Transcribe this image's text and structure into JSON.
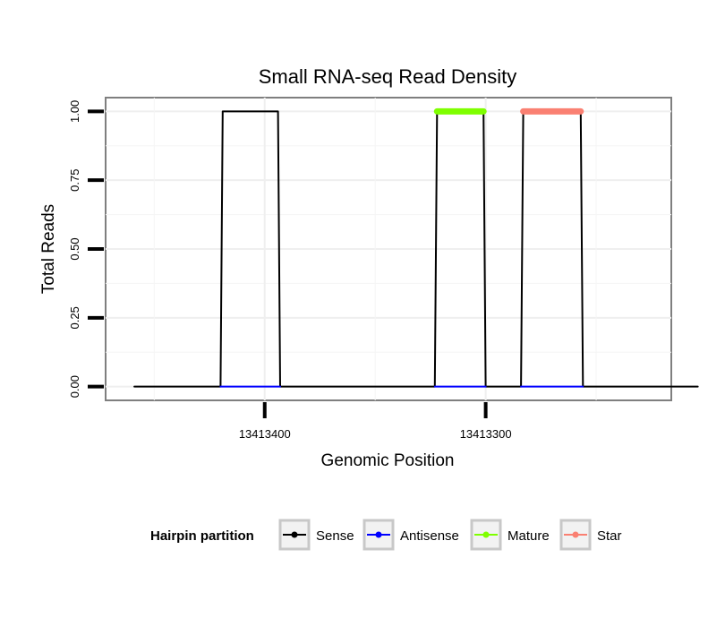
{
  "chart_data": {
    "type": "line",
    "title": "Small RNA-seq Read Density",
    "xlabel": "Genomic Position",
    "ylabel": "Total Reads",
    "xlim": [
      13413472,
      13413216
    ],
    "ylim": [
      -0.05,
      1.05
    ],
    "x_reversed": true,
    "grid": true,
    "x_ticks": [
      {
        "value": 13413400,
        "label": "13413400"
      },
      {
        "value": 13413300,
        "label": "13413300"
      }
    ],
    "y_ticks": [
      {
        "value": 0.0,
        "label": "0.00"
      },
      {
        "value": 0.25,
        "label": "0.25"
      },
      {
        "value": 0.5,
        "label": "0.50"
      },
      {
        "value": 0.75,
        "label": "0.75"
      },
      {
        "value": 1.0,
        "label": "1.00"
      }
    ],
    "series": [
      {
        "name": "Sense",
        "color": "#000000",
        "x": [
          13413459,
          13413420,
          13413419,
          13413394,
          13413393,
          13413323,
          13413322,
          13413301,
          13413300,
          13413284,
          13413283,
          13413257,
          13413256,
          13413204
        ],
        "y": [
          0,
          0,
          1,
          1,
          0,
          0,
          1,
          1,
          0,
          0,
          1,
          1,
          0,
          0
        ]
      },
      {
        "name": "Antisense",
        "color": "#0000ff",
        "x": [
          13413420,
          13413393,
          null,
          13413323,
          13413300,
          null,
          13413284,
          13413256
        ],
        "y": [
          0,
          0,
          null,
          0,
          0,
          null,
          0,
          0
        ]
      },
      {
        "name": "Mature",
        "color": "#7fff00",
        "x": [
          13413322,
          13413301
        ],
        "y": [
          1,
          1
        ]
      },
      {
        "name": "Star",
        "color": "#fa8072",
        "x": [
          13413283,
          13413257
        ],
        "y": [
          1,
          1
        ]
      }
    ],
    "legend": {
      "title": "Hairpin partition",
      "position": "bottom",
      "items": [
        {
          "label": "Sense",
          "color": "#000000"
        },
        {
          "label": "Antisense",
          "color": "#0000ff"
        },
        {
          "label": "Mature",
          "color": "#7fff00"
        },
        {
          "label": "Star",
          "color": "#fa8072"
        }
      ]
    }
  }
}
